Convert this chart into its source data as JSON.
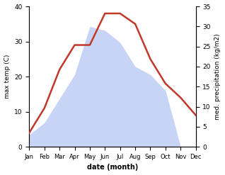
{
  "months": [
    "Jan",
    "Feb",
    "Mar",
    "Apr",
    "May",
    "Jun",
    "Jul",
    "Aug",
    "Sep",
    "Oct",
    "Nov",
    "Dec"
  ],
  "temperature": [
    4,
    11,
    22,
    29,
    29,
    38,
    38,
    35,
    25,
    18,
    14,
    9
  ],
  "precipitation": [
    3,
    6,
    12,
    18,
    30,
    29,
    26,
    20,
    18,
    14,
    0,
    0
  ],
  "temp_color": "#c0392b",
  "precip_color_fill": "#c8d4f5",
  "xlabel": "date (month)",
  "ylabel_left": "max temp (C)",
  "ylabel_right": "med. precipitation (kg/m2)",
  "ylim_left": [
    0,
    40
  ],
  "ylim_right": [
    0,
    35
  ],
  "yticks_left": [
    0,
    10,
    20,
    30,
    40
  ],
  "yticks_right": [
    0,
    5,
    10,
    15,
    20,
    25,
    30,
    35
  ],
  "line_width": 1.8,
  "bg_color": "#ffffff"
}
